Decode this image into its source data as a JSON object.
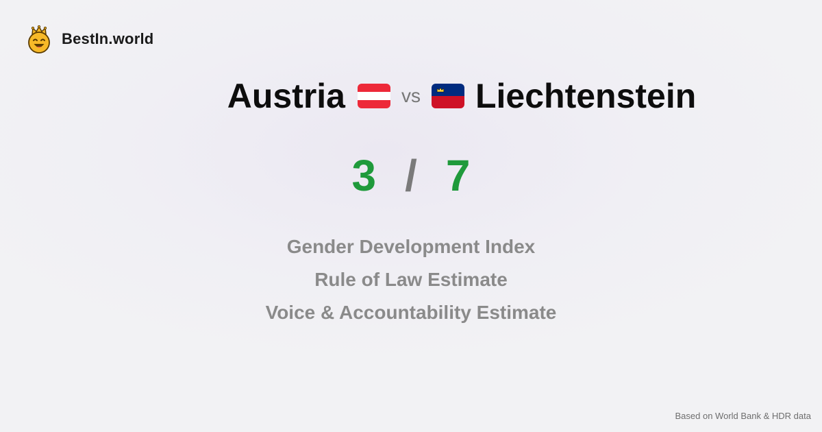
{
  "brand": {
    "logo_icon": "crowned-smiley-face-icon",
    "name": "BestIn.world"
  },
  "comparison": {
    "country_a": {
      "name": "Austria",
      "flag_icon": "austria-flag-icon",
      "flag_colors": [
        "#ed2939",
        "#ffffff",
        "#ed2939"
      ]
    },
    "separator": "vs",
    "country_b": {
      "name": "Liechtenstein",
      "flag_icon": "liechtenstein-flag-icon",
      "flag_colors": [
        "#002b7f",
        "#ce1126"
      ]
    }
  },
  "score": {
    "left": "3",
    "separator": "/",
    "right": "7"
  },
  "metrics": [
    "Gender Development Index",
    "Rule of Law Estimate",
    "Voice & Accountability Estimate"
  ],
  "footnote": "Based on World Bank & HDR data",
  "colors": {
    "score_green": "#1f9a3b",
    "metric_gray": "#8a8a8a",
    "logo_yellow": "#f7b928"
  }
}
